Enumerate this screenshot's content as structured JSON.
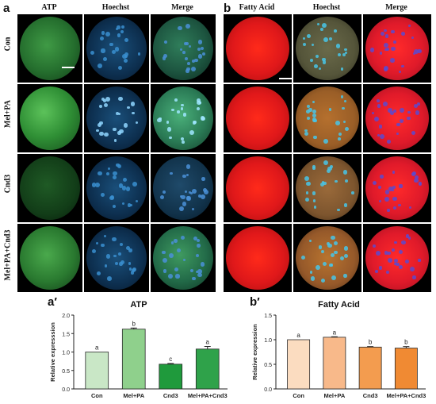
{
  "figure": {
    "panel_a": {
      "letter": "a",
      "columns": [
        "ATP",
        "Hoechst",
        "Merge"
      ],
      "rows": [
        "Con",
        "Mel+PA",
        "Cnd3",
        "Mel+PA+Cnd3"
      ]
    },
    "panel_b": {
      "letter": "b",
      "columns": [
        "Fatty Acid",
        "Hoechst",
        "Merge"
      ]
    },
    "panel_a_prime": {
      "letter": "a′"
    },
    "panel_b_prime": {
      "letter": "b′"
    }
  },
  "colors": {
    "atp_green": "#2e8b3a",
    "hoechst_blue": "#1f6fb4",
    "fatty_red": "#e0181a",
    "brightfield_orange": "#a0612a",
    "bar_green_light": "#c9e7c6",
    "bar_green_mid": "#8fd08c",
    "bar_green_dark": "#1f9a3c",
    "bar_green_mixed": "#2fa24a",
    "bar_orange_light": "#fbdcc0",
    "bar_orange_mid": "#f8b98a",
    "bar_orange_dark": "#f39c4f",
    "bar_orange_mixed": "#f08a33"
  },
  "chart_data": [
    {
      "type": "bar",
      "title": "ATP",
      "ylabel": "Relative expresssion",
      "categories": [
        "Con",
        "Mel+PA",
        "Cnd3",
        "Mel+PA+Cnd3"
      ],
      "values": [
        1.0,
        1.62,
        0.67,
        1.08
      ],
      "errors": [
        0.0,
        0.03,
        0.02,
        0.07
      ],
      "significance": [
        "a",
        "b",
        "c",
        "a"
      ],
      "ylim": [
        0,
        2.0
      ],
      "yticks": [
        "0.0",
        "0.5",
        "1.0",
        "1.5",
        "2.0"
      ]
    },
    {
      "type": "bar",
      "title": "Fatty Acid",
      "ylabel": "Relative expression",
      "categories": [
        "Con",
        "Mel+PA",
        "Cnd3",
        "Mel+PA+Cnd3"
      ],
      "values": [
        1.0,
        1.05,
        0.85,
        0.83
      ],
      "errors": [
        0.0,
        0.01,
        0.01,
        0.03
      ],
      "significance": [
        "a",
        "a",
        "b",
        "b"
      ],
      "ylim": [
        0,
        1.5
      ],
      "yticks": [
        "0.0",
        "0.5",
        "1.0",
        "1.5"
      ]
    }
  ]
}
